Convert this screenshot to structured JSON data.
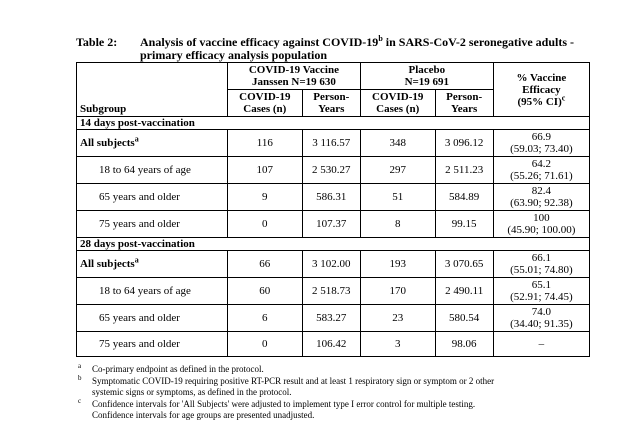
{
  "header": {
    "number": "Table 2:",
    "title": "Analysis of vaccine efficacy against COVID-19",
    "title_sup": "b",
    "title_rest": " in SARS-CoV-2 seronegative adults - primary efficacy analysis population"
  },
  "table": {
    "groups": [
      [
        "COVID-19 Vaccine",
        "Janssen N=19 630"
      ],
      [
        "Placebo",
        "N=19 691"
      ]
    ],
    "subgroup_header": "Subgroup",
    "efficacy_header": {
      "lines": [
        "% Vaccine",
        "Efficacy",
        "(95% CI)"
      ],
      "sup": "c"
    },
    "columns": [
      [
        "COVID-19",
        "Cases (n)"
      ],
      [
        "Person-",
        "Years"
      ],
      [
        "COVID-19",
        "Cases (n)"
      ],
      [
        "Person-",
        "Years"
      ]
    ],
    "sections": [
      {
        "title": "14 days post-vaccination",
        "rows": [
          {
            "label": "All subjects",
            "sup": "a",
            "cells": [
              "116",
              "3 116.57",
              "348",
              "3 096.12"
            ],
            "efficacy": "66.9",
            "ci": "(59.03; 73.40)"
          },
          {
            "label": "18 to 64 years of age",
            "cells": [
              "107",
              "2 530.27",
              "297",
              "2 511.23"
            ],
            "efficacy": "64.2",
            "ci": "(55.26; 71.61)"
          },
          {
            "label": "65 years and older",
            "cells": [
              "9",
              "586.31",
              "51",
              "584.89"
            ],
            "efficacy": "82.4",
            "ci": "(63.90; 92.38)"
          },
          {
            "label": "75 years and older",
            "cells": [
              "0",
              "107.37",
              "8",
              "99.15"
            ],
            "efficacy": "100",
            "ci": "(45.90; 100.00)"
          }
        ]
      },
      {
        "title": "28 days post-vaccination",
        "rows": [
          {
            "label": "All subjects",
            "sup": "a",
            "cells": [
              "66",
              "3 102.00",
              "193",
              "3 070.65"
            ],
            "efficacy": "66.1",
            "ci": "(55.01; 74.80)"
          },
          {
            "label": "18 to 64 years of age",
            "cells": [
              "60",
              "2 518.73",
              "170",
              "2 490.11"
            ],
            "efficacy": "65.1",
            "ci": "(52.91; 74.45)"
          },
          {
            "label": "65 years and older",
            "cells": [
              "6",
              "583.27",
              "23",
              "580.54"
            ],
            "efficacy": "74.0",
            "ci": "(34.40; 91.35)"
          },
          {
            "label": "75 years and older",
            "cells": [
              "0",
              "106.42",
              "3",
              "98.06"
            ],
            "efficacy": "–"
          }
        ]
      }
    ]
  },
  "footnotes": [
    {
      "mark": "a",
      "lines": [
        "Co-primary endpoint as defined in the protocol."
      ]
    },
    {
      "mark": "b",
      "lines": [
        "Symptomatic COVID-19 requiring positive RT-PCR result and at least 1 respiratory sign or symptom or 2 other",
        "systemic signs or symptoms, as defined in the protocol."
      ]
    },
    {
      "mark": "c",
      "lines": [
        "Confidence intervals for 'All Subjects' were adjusted to implement type I error control for multiple testing.",
        "Confidence intervals for age groups are presented unadjusted."
      ]
    }
  ]
}
